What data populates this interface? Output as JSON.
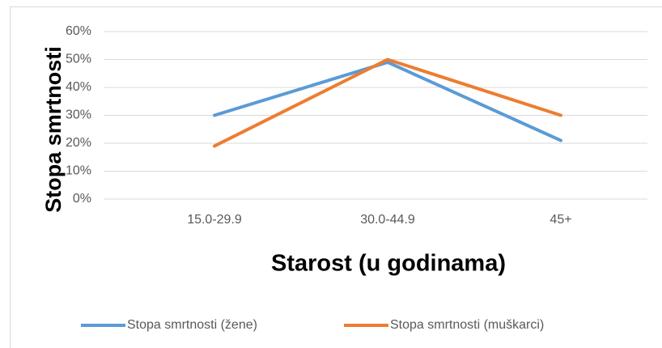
{
  "chart_data": {
    "type": "line",
    "x_label": "Starost (u godinama)",
    "y_label": "Stopa smrtnosti",
    "categories": [
      "15.0-29.9",
      "30.0-44.9",
      "45+"
    ],
    "series": [
      {
        "name": "Stopa smrtnosti (žene)",
        "color": "#5b9bd5",
        "values": [
          30,
          49,
          21
        ]
      },
      {
        "name": "Stopa smrtnosti (muškarci)",
        "color": "#ed7d31",
        "values": [
          19,
          50,
          30
        ]
      }
    ],
    "ylim": [
      0,
      60
    ],
    "yticks": [
      {
        "value": 0,
        "label": "0%"
      },
      {
        "value": 10,
        "label": "10%"
      },
      {
        "value": 20,
        "label": "20%"
      },
      {
        "value": 30,
        "label": "30%"
      },
      {
        "value": 40,
        "label": "40%"
      },
      {
        "value": 50,
        "label": "50%"
      },
      {
        "value": 60,
        "label": "60%"
      }
    ],
    "grid": true,
    "legend": "bottom"
  }
}
